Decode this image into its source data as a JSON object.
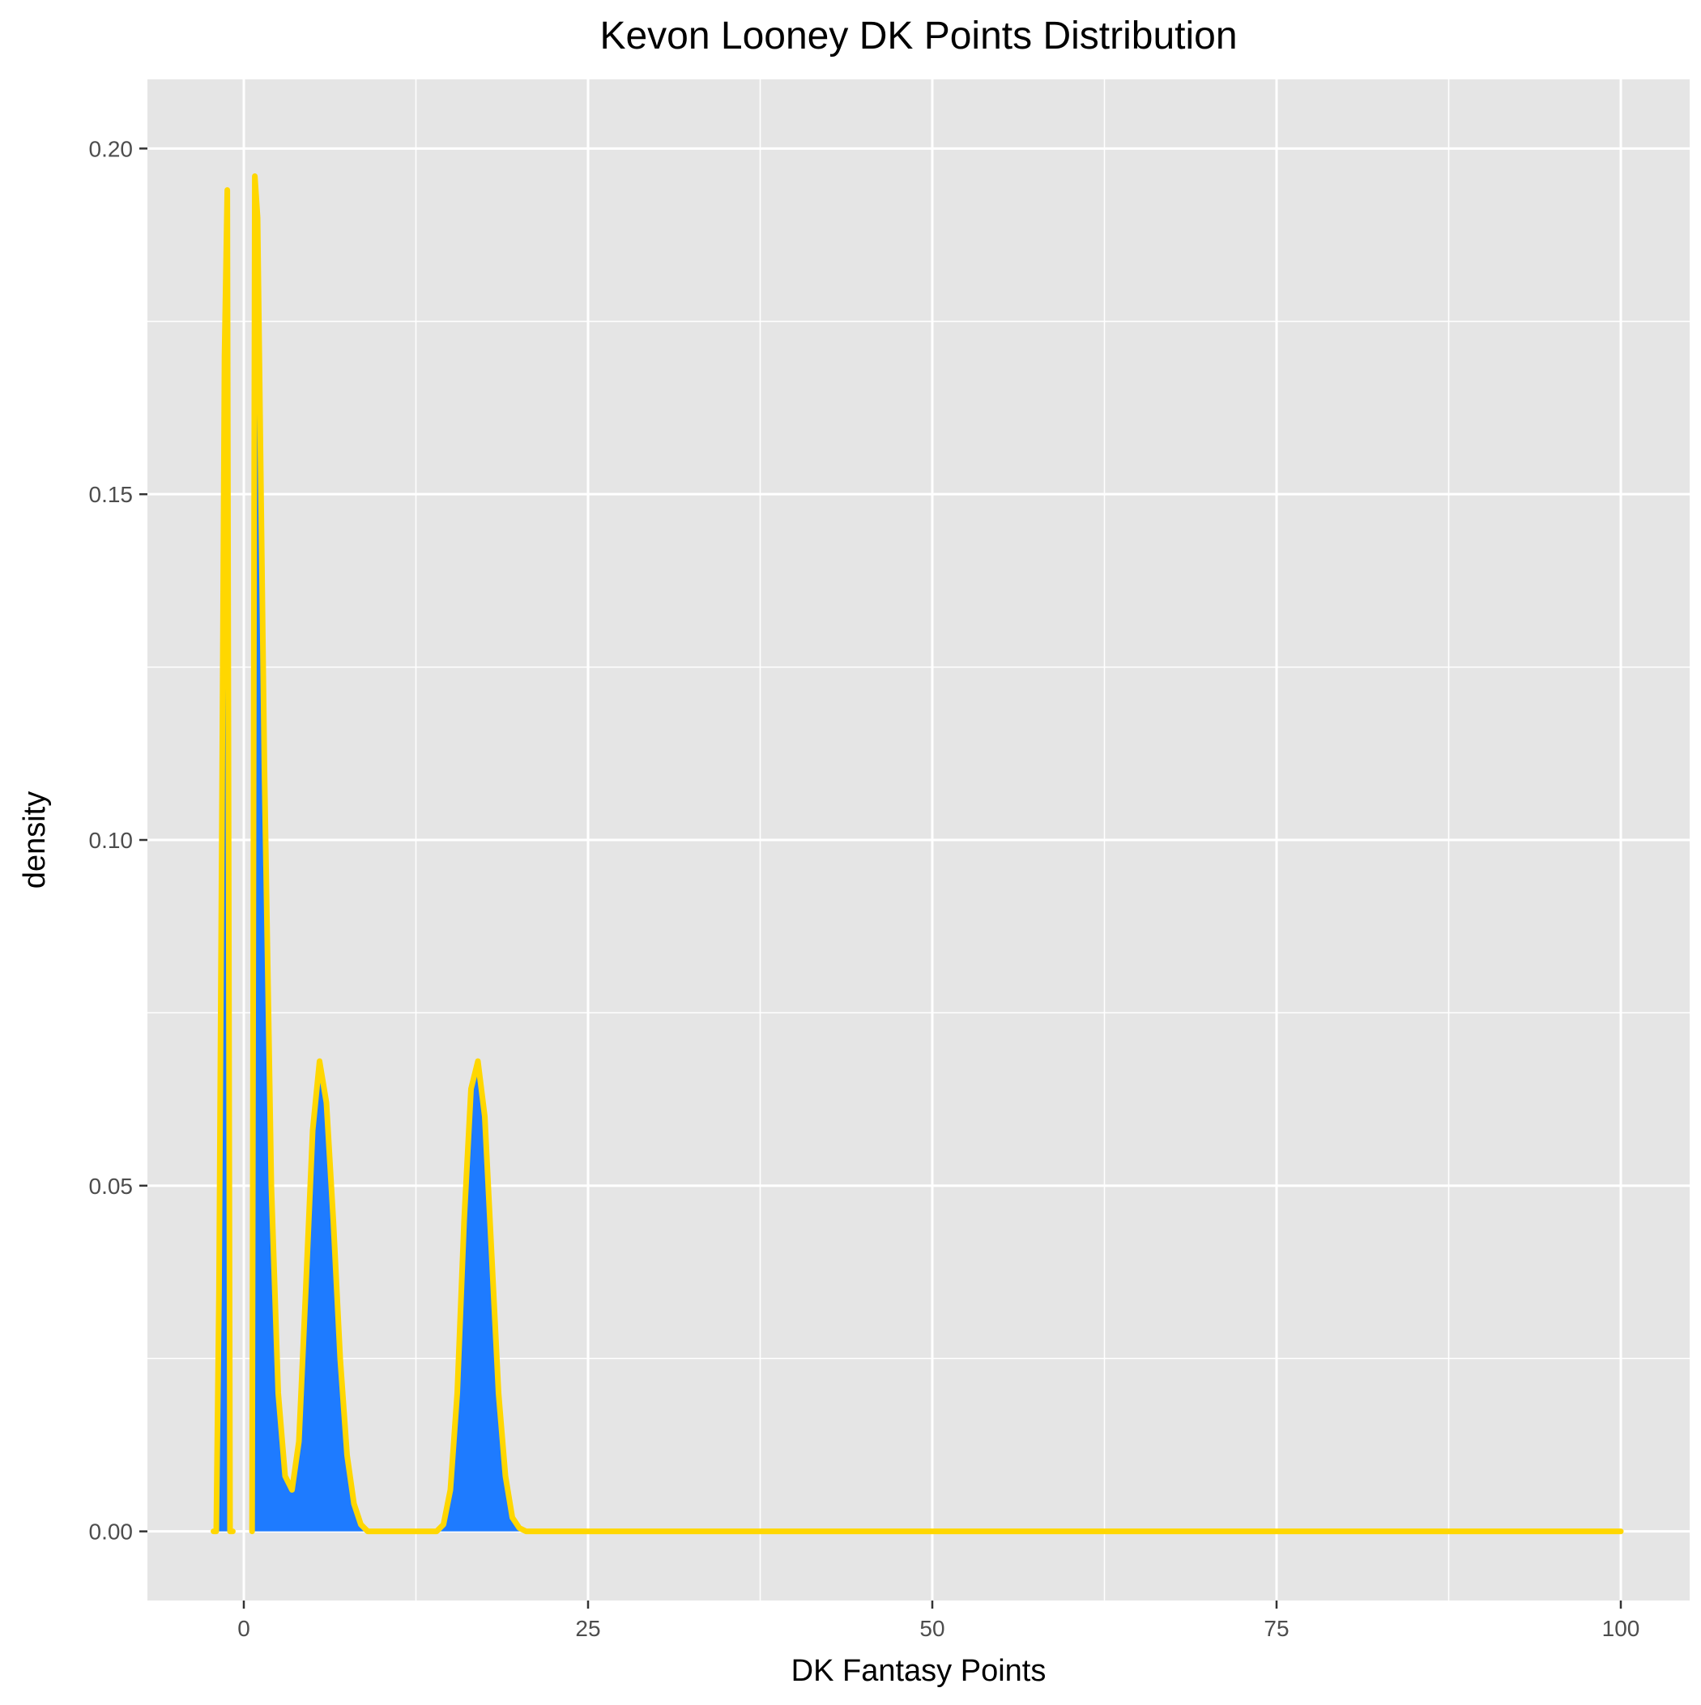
{
  "chart_data": {
    "type": "area",
    "title": "Kevon Looney DK Points Distribution",
    "xlabel": "DK Fantasy Points",
    "ylabel": "density",
    "xlim": [
      -7,
      105
    ],
    "ylim": [
      -0.01,
      0.21
    ],
    "x_ticks": [
      {
        "value": 0,
        "label": "0"
      },
      {
        "value": 25,
        "label": "25"
      },
      {
        "value": 50,
        "label": "50"
      },
      {
        "value": 75,
        "label": "75"
      },
      {
        "value": 100,
        "label": "100"
      }
    ],
    "y_ticks": [
      {
        "value": 0.0,
        "label": "0.00"
      },
      {
        "value": 0.05,
        "label": "0.05"
      },
      {
        "value": 0.1,
        "label": "0.10"
      },
      {
        "value": 0.15,
        "label": "0.15"
      },
      {
        "value": 0.2,
        "label": "0.20"
      }
    ],
    "x_minor_gridlines": [
      -12.5,
      12.5,
      37.5,
      62.5,
      87.5
    ],
    "y_minor_gridlines": [
      0.025,
      0.075,
      0.125,
      0.175
    ],
    "grid": true,
    "legend": "none",
    "series": [
      {
        "x": [
          -2.2,
          -2.0,
          -1.8,
          -1.6,
          -1.4,
          -1.2,
          -1.0,
          -0.8
        ],
        "y": [
          0.0,
          0.0,
          0.035,
          0.1,
          0.17,
          0.194,
          0.0,
          0.0
        ]
      },
      {
        "x": [
          0.6,
          0.8,
          1.0,
          1.5,
          2.0,
          2.5,
          3.0,
          3.5,
          4.0,
          4.5,
          5.0,
          5.5,
          6.0,
          6.5,
          7.0,
          7.5,
          8.0,
          8.5,
          9.0,
          10.0,
          14.0,
          14.5,
          15.0,
          15.5,
          16.0,
          16.5,
          17.0,
          17.5,
          18.0,
          18.5,
          19.0,
          19.5,
          20.0,
          20.5,
          21.0,
          22.0,
          100.0
        ],
        "y": [
          0.0,
          0.196,
          0.19,
          0.11,
          0.05,
          0.02,
          0.008,
          0.006,
          0.013,
          0.035,
          0.058,
          0.068,
          0.062,
          0.045,
          0.025,
          0.011,
          0.004,
          0.001,
          0.0,
          0.0,
          0.0,
          0.001,
          0.006,
          0.02,
          0.045,
          0.064,
          0.068,
          0.06,
          0.04,
          0.02,
          0.008,
          0.002,
          0.0005,
          0.0,
          0.0,
          0.0,
          0.0
        ]
      }
    ],
    "fill_color": "#1E7BFF",
    "line_color": "#FFD700",
    "panel_background": "#E5E5E5",
    "grid_color": "#FFFFFF"
  }
}
